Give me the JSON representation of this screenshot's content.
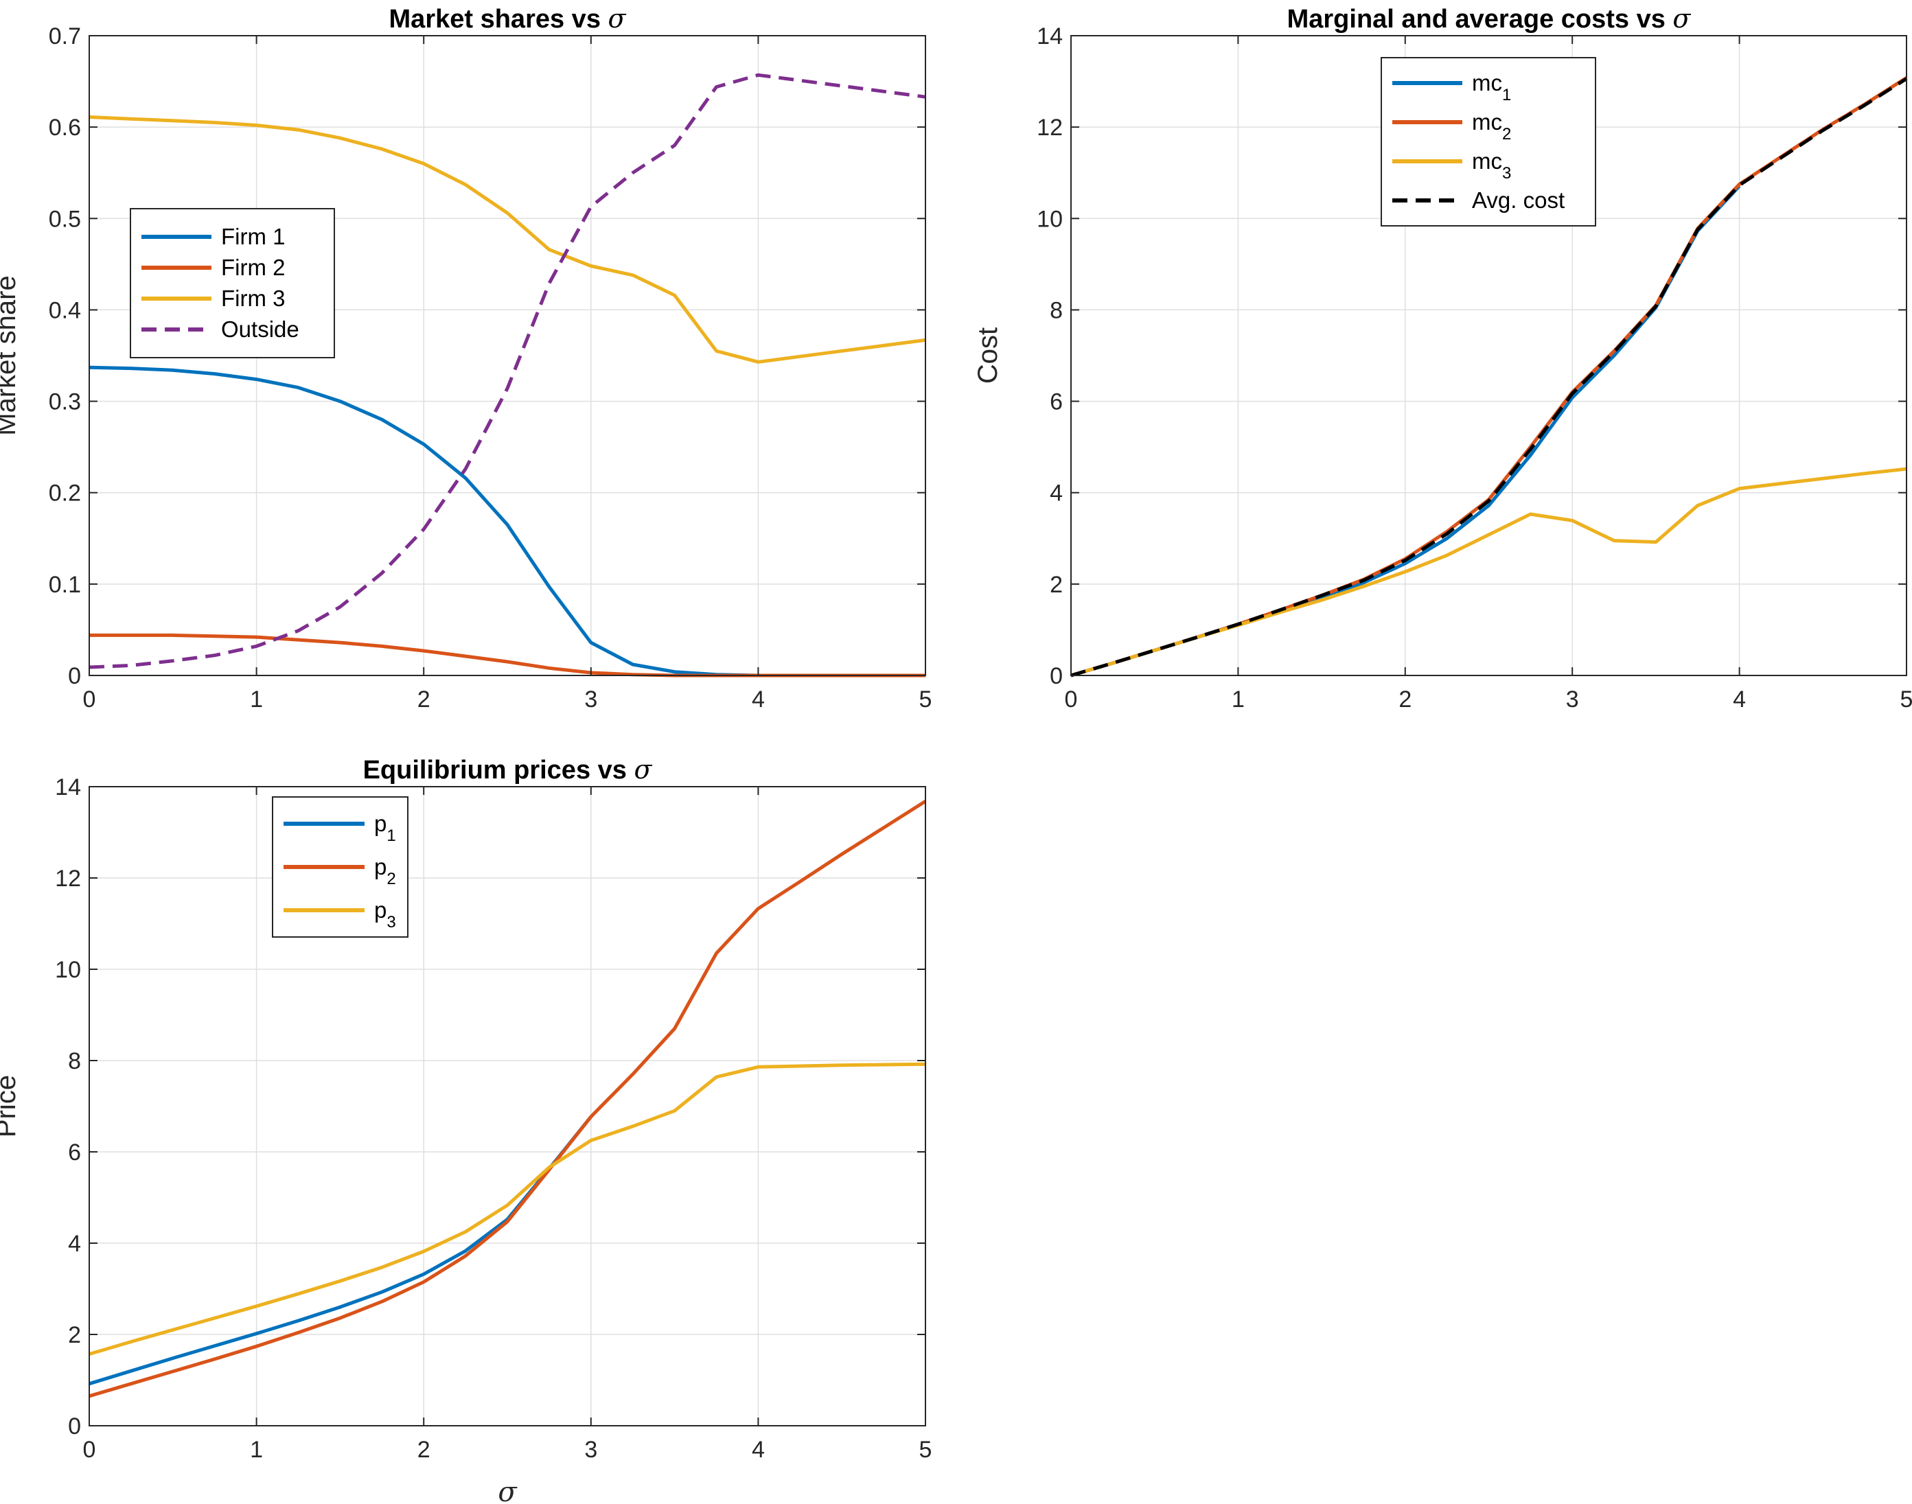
{
  "chart_data": [
    {
      "type": "line",
      "title": "Market shares vs ",
      "title_symbol": "σ",
      "xlabel": "",
      "ylabel": "Market share",
      "xlim": [
        0,
        5
      ],
      "ylim": [
        0,
        0.7
      ],
      "xticks": [
        0,
        1,
        2,
        3,
        4,
        5
      ],
      "xtick_labels": [
        "0",
        "1",
        "2",
        "3",
        "4",
        "5"
      ],
      "yticks": [
        0,
        0.1,
        0.2,
        0.3,
        0.4,
        0.5,
        0.6,
        0.7
      ],
      "ytick_labels": [
        "0",
        "0.1",
        "0.2",
        "0.3",
        "0.4",
        "0.5",
        "0.6",
        "0.7"
      ],
      "grid": true,
      "legend_position": "middle-left",
      "series": [
        {
          "name": "Firm 1",
          "sub": "",
          "color": "#0072BD",
          "dash": "solid",
          "x": [
            0,
            0.25,
            0.5,
            0.75,
            1,
            1.25,
            1.5,
            1.75,
            2,
            2.25,
            2.5,
            2.75,
            3,
            3.25,
            3.5,
            3.75,
            4,
            4.25,
            4.5,
            4.75,
            5
          ],
          "y": [
            0.337,
            0.336,
            0.334,
            0.33,
            0.324,
            0.315,
            0.3,
            0.28,
            0.253,
            0.216,
            0.165,
            0.097,
            0.036,
            0.012,
            0.004,
            0.001,
            0.0,
            0.0,
            0.0,
            0.0,
            0.0
          ]
        },
        {
          "name": "Firm 2",
          "sub": "",
          "color": "#D95319",
          "dash": "solid",
          "x": [
            0,
            0.25,
            0.5,
            0.75,
            1,
            1.25,
            1.5,
            1.75,
            2,
            2.25,
            2.5,
            2.75,
            3,
            3.25,
            3.5,
            3.75,
            4,
            4.25,
            4.5,
            4.75,
            5
          ],
          "y": [
            0.044,
            0.044,
            0.044,
            0.043,
            0.042,
            0.039,
            0.036,
            0.032,
            0.027,
            0.021,
            0.015,
            0.008,
            0.003,
            0.001,
            0.0,
            0.0,
            0.0,
            0.0,
            0.0,
            0.0,
            0.0
          ]
        },
        {
          "name": "Firm 3",
          "sub": "",
          "color": "#EDB120",
          "dash": "solid",
          "x": [
            0,
            0.25,
            0.5,
            0.75,
            1,
            1.25,
            1.5,
            1.75,
            2,
            2.25,
            2.5,
            2.75,
            3,
            3.25,
            3.5,
            3.75,
            4,
            4.25,
            4.5,
            4.75,
            5
          ],
          "y": [
            0.611,
            0.609,
            0.607,
            0.605,
            0.602,
            0.597,
            0.588,
            0.576,
            0.56,
            0.537,
            0.506,
            0.466,
            0.448,
            0.438,
            0.416,
            0.355,
            0.343,
            0.349,
            0.355,
            0.361,
            0.367
          ]
        },
        {
          "name": "Outside",
          "sub": "",
          "color": "#7E2F8E",
          "dash": "dashed",
          "x": [
            0,
            0.25,
            0.5,
            0.75,
            1,
            1.25,
            1.5,
            1.75,
            2,
            2.25,
            2.5,
            2.75,
            3,
            3.25,
            3.5,
            3.75,
            4,
            4.25,
            4.5,
            4.75,
            5
          ],
          "y": [
            0.009,
            0.011,
            0.016,
            0.022,
            0.032,
            0.049,
            0.075,
            0.112,
            0.16,
            0.226,
            0.314,
            0.429,
            0.513,
            0.55,
            0.58,
            0.644,
            0.657,
            0.651,
            0.645,
            0.639,
            0.633
          ]
        }
      ]
    },
    {
      "type": "line",
      "title": "Marginal and average costs vs ",
      "title_symbol": "σ",
      "xlabel": "",
      "ylabel": "Cost",
      "xlim": [
        0,
        5
      ],
      "ylim": [
        0,
        14
      ],
      "xticks": [
        0,
        1,
        2,
        3,
        4,
        5
      ],
      "xtick_labels": [
        "0",
        "1",
        "2",
        "3",
        "4",
        "5"
      ],
      "yticks": [
        0,
        2,
        4,
        6,
        8,
        10,
        12,
        14
      ],
      "ytick_labels": [
        "0",
        "2",
        "4",
        "6",
        "8",
        "10",
        "12",
        "14"
      ],
      "grid": true,
      "legend_position": "top-center",
      "series": [
        {
          "name": "mc",
          "sub": "1",
          "color": "#0072BD",
          "dash": "solid",
          "x": [
            0,
            0.25,
            0.5,
            0.75,
            1,
            1.25,
            1.5,
            1.75,
            2,
            2.25,
            2.5,
            2.75,
            3,
            3.25,
            3.5,
            3.75,
            4
          ],
          "y": [
            0,
            0.27,
            0.55,
            0.83,
            1.12,
            1.42,
            1.72,
            2.03,
            2.45,
            3.0,
            3.72,
            4.82,
            6.08,
            7.0,
            8.05,
            9.73,
            10.71
          ]
        },
        {
          "name": "mc",
          "sub": "2",
          "color": "#D95319",
          "dash": "solid",
          "x": [
            0,
            0.25,
            0.5,
            0.75,
            1,
            1.25,
            1.5,
            1.75,
            2,
            2.25,
            2.5,
            2.75,
            3,
            3.25,
            3.5,
            3.75,
            4,
            4.25,
            4.5,
            4.75,
            5
          ],
          "y": [
            0,
            0.27,
            0.55,
            0.83,
            1.12,
            1.43,
            1.75,
            2.1,
            2.55,
            3.15,
            3.85,
            5.0,
            6.2,
            7.1,
            8.1,
            9.78,
            10.75,
            11.35,
            11.95,
            12.5,
            13.08
          ]
        },
        {
          "name": "mc",
          "sub": "3",
          "color": "#EDB120",
          "dash": "solid",
          "x": [
            0,
            0.25,
            0.5,
            0.75,
            1,
            1.25,
            1.5,
            1.75,
            2,
            2.25,
            2.5,
            2.75,
            3,
            3.25,
            3.5,
            3.75,
            4,
            4.25,
            4.5,
            4.75,
            5
          ],
          "y": [
            0,
            0.27,
            0.55,
            0.83,
            1.1,
            1.38,
            1.65,
            1.95,
            2.27,
            2.63,
            3.08,
            3.53,
            3.39,
            2.95,
            2.92,
            3.72,
            4.09,
            4.2,
            4.31,
            4.42,
            4.52
          ]
        },
        {
          "name": "Avg. cost",
          "sub": "",
          "color": "#000000",
          "dash": "dashed",
          "x": [
            0,
            0.25,
            0.5,
            0.75,
            1,
            1.25,
            1.5,
            1.75,
            2,
            2.25,
            2.5,
            2.75,
            3,
            3.25,
            3.5,
            3.75,
            4,
            4.25,
            4.5,
            4.75,
            5
          ],
          "y": [
            0,
            0.27,
            0.55,
            0.83,
            1.12,
            1.43,
            1.75,
            2.08,
            2.52,
            3.1,
            3.82,
            4.95,
            6.17,
            7.08,
            8.08,
            9.76,
            10.73,
            11.33,
            11.93,
            12.48,
            13.06
          ]
        }
      ]
    },
    {
      "type": "line",
      "title": "Equilibrium prices vs ",
      "title_symbol": "σ",
      "xlabel": "σ",
      "ylabel": "Price",
      "xlim": [
        0,
        5
      ],
      "ylim": [
        0,
        14
      ],
      "xticks": [
        0,
        1,
        2,
        3,
        4,
        5
      ],
      "xtick_labels": [
        "0",
        "1",
        "2",
        "3",
        "4",
        "5"
      ],
      "yticks": [
        0,
        2,
        4,
        6,
        8,
        10,
        12,
        14
      ],
      "ytick_labels": [
        "0",
        "2",
        "4",
        "6",
        "8",
        "10",
        "12",
        "14"
      ],
      "grid": true,
      "legend_position": "top-left",
      "series": [
        {
          "name": "p",
          "sub": "1",
          "color": "#0072BD",
          "dash": "solid",
          "x": [
            0,
            0.25,
            0.5,
            0.75,
            1,
            1.25,
            1.5,
            1.75,
            2,
            2.25,
            2.5,
            2.75,
            3
          ],
          "y": [
            0.92,
            1.2,
            1.48,
            1.75,
            2.02,
            2.3,
            2.6,
            2.93,
            3.32,
            3.83,
            4.52,
            5.63,
            6.77
          ]
        },
        {
          "name": "p",
          "sub": "2",
          "color": "#D95319",
          "dash": "solid",
          "x": [
            0,
            0.25,
            0.5,
            0.75,
            1,
            1.25,
            1.5,
            1.75,
            2,
            2.25,
            2.5,
            2.75,
            3,
            3.25,
            3.5,
            3.75,
            4,
            4.25,
            4.5,
            4.75,
            5
          ],
          "y": [
            0.65,
            0.92,
            1.19,
            1.46,
            1.74,
            2.04,
            2.36,
            2.72,
            3.15,
            3.72,
            4.47,
            5.61,
            6.77,
            7.7,
            8.7,
            10.35,
            11.33,
            11.92,
            12.52,
            13.1,
            13.68
          ]
        },
        {
          "name": "p",
          "sub": "3",
          "color": "#EDB120",
          "dash": "solid",
          "x": [
            0,
            0.25,
            0.5,
            0.75,
            1,
            1.25,
            1.5,
            1.75,
            2,
            2.25,
            2.5,
            2.75,
            3,
            3.25,
            3.5,
            3.75,
            4,
            4.25,
            4.5,
            4.75,
            5
          ],
          "y": [
            1.57,
            1.84,
            2.1,
            2.36,
            2.62,
            2.89,
            3.17,
            3.47,
            3.82,
            4.25,
            4.83,
            5.66,
            6.25,
            6.56,
            6.9,
            7.64,
            7.86,
            7.88,
            7.9,
            7.91,
            7.92
          ]
        }
      ]
    }
  ]
}
